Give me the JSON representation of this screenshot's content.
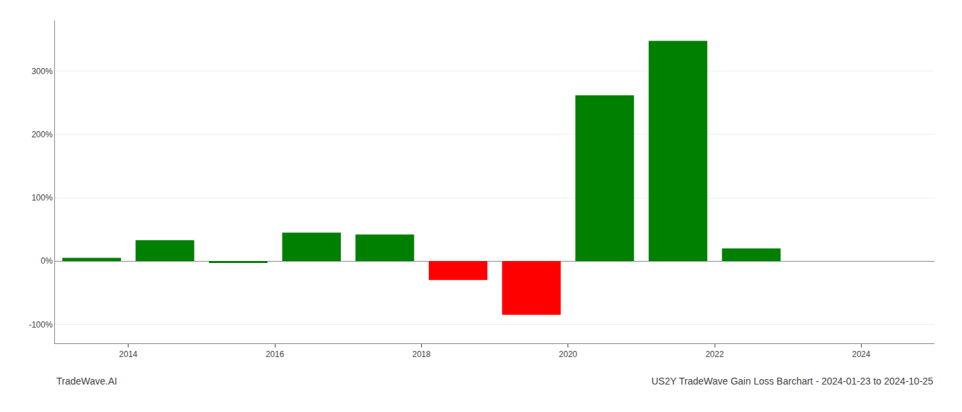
{
  "chart_data": {
    "type": "bar",
    "title": "US2Y TradeWave Gain Loss Barchart - 2024-01-23 to 2024-10-25",
    "annotations": [
      "TradeWave.AI"
    ],
    "x": [
      2013.5,
      2014.5,
      2015.5,
      2016.5,
      2017.5,
      2018.5,
      2019.5,
      2020.5,
      2021.5,
      2022.5
    ],
    "values": [
      5,
      33,
      -3,
      45,
      42,
      -30,
      -85,
      262,
      348,
      20
    ],
    "colors": [
      "#008000",
      "#008000",
      "#008000",
      "#008000",
      "#008000",
      "#ff0000",
      "#ff0000",
      "#008000",
      "#008000",
      "#008000"
    ],
    "xlim": [
      2013,
      2025
    ],
    "xticks": [
      2014,
      2016,
      2018,
      2020,
      2022,
      2024
    ],
    "ylim": [
      -130,
      380
    ],
    "yticks": [
      {
        "value": -100,
        "label": "-100%"
      },
      {
        "value": 0,
        "label": "0%"
      },
      {
        "value": 100,
        "label": "100%"
      },
      {
        "value": 200,
        "label": "200%"
      },
      {
        "value": 300,
        "label": "300%"
      }
    ],
    "grid": "y"
  }
}
